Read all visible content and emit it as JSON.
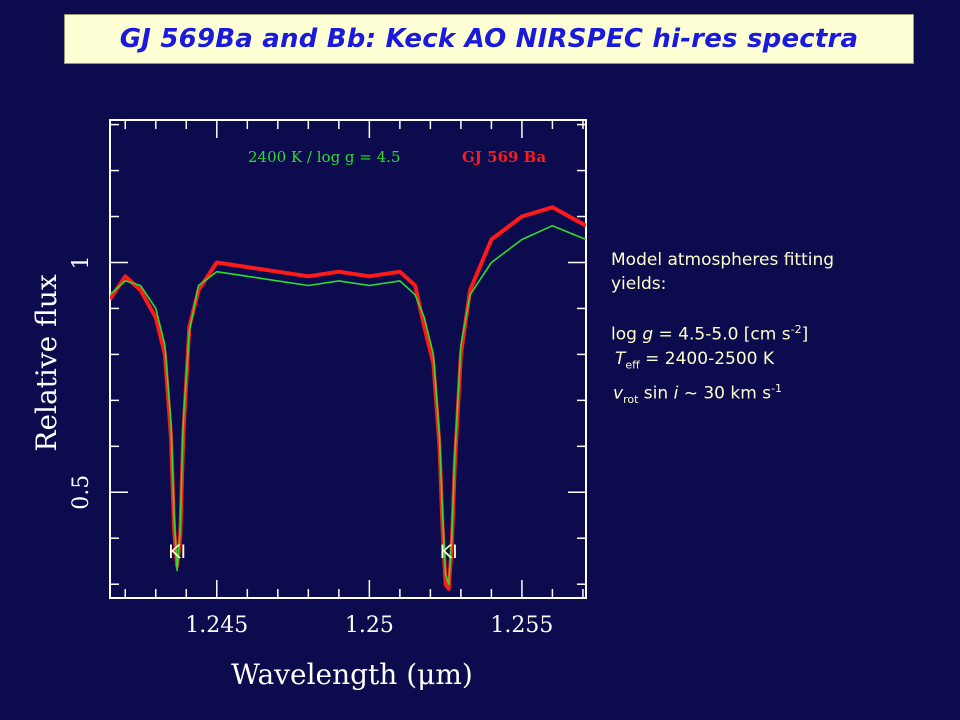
{
  "page_title": "GJ 569Ba and Bb: Keck AO NIRSPEC hi-res spectra",
  "notes": {
    "line1": "Model atmospheres fitting",
    "line2": "yields:",
    "logg_prefix": "log ",
    "logg_var": "g",
    "logg_value": " = 4.5-5.0 [cm s",
    "logg_exp": "-2",
    "logg_close": "]",
    "teff_var": "T",
    "teff_sub": "eff",
    "teff_value": " = 2400-2500 K",
    "vrot_var": "v",
    "vrot_sub": "rot",
    "vrot_mid": " sin ",
    "vrot_i": "i",
    "vrot_value": " ~ 30 km s",
    "vrot_exp": "-1"
  },
  "colors": {
    "background": "#0b0b4e",
    "observed": "#ff1a1a",
    "model": "#2edc2e",
    "axis": "#ffffff",
    "text": "#ffffcf",
    "title_text": "#1a1adc"
  },
  "chart_data": {
    "type": "line",
    "title": "",
    "xlabel": "Wavelength (μm)",
    "ylabel": "Relative flux",
    "xlim": [
      1.2415,
      1.2571
    ],
    "ylim": [
      0.27,
      1.31
    ],
    "x_ticks": [
      1.245,
      1.25,
      1.255
    ],
    "x_tick_labels": [
      "1.245",
      "1.25",
      "1.255"
    ],
    "y_ticks": [
      0.5,
      1.0
    ],
    "y_tick_labels": [
      "0.5",
      "1"
    ],
    "annotations": [
      {
        "text": "KI",
        "x": 1.2437
      },
      {
        "text": "KI",
        "x": 1.2526
      }
    ],
    "series": [
      {
        "name": "2400 K / log g = 4.5",
        "color": "#2edc2e",
        "x": [
          1.2415,
          1.242,
          1.2425,
          1.243,
          1.2433,
          1.2435,
          1.2436,
          1.2437,
          1.2438,
          1.2439,
          1.2441,
          1.2444,
          1.245,
          1.246,
          1.247,
          1.248,
          1.249,
          1.25,
          1.251,
          1.2515,
          1.2518,
          1.2521,
          1.2523,
          1.2524,
          1.2525,
          1.2526,
          1.2527,
          1.2528,
          1.253,
          1.2533,
          1.254,
          1.255,
          1.256,
          1.2571
        ],
        "values": [
          0.93,
          0.96,
          0.95,
          0.9,
          0.82,
          0.65,
          0.45,
          0.33,
          0.42,
          0.65,
          0.85,
          0.95,
          0.98,
          0.97,
          0.96,
          0.95,
          0.96,
          0.95,
          0.96,
          0.93,
          0.88,
          0.8,
          0.62,
          0.45,
          0.32,
          0.3,
          0.4,
          0.58,
          0.82,
          0.93,
          1.0,
          1.05,
          1.08,
          1.05
        ]
      },
      {
        "name": "GJ 569 Ba",
        "color": "#ff1a1a",
        "x": [
          1.2415,
          1.242,
          1.2425,
          1.243,
          1.2433,
          1.2435,
          1.2436,
          1.2437,
          1.2438,
          1.2439,
          1.2441,
          1.2444,
          1.245,
          1.246,
          1.247,
          1.248,
          1.249,
          1.25,
          1.251,
          1.2515,
          1.2518,
          1.2521,
          1.2523,
          1.2524,
          1.2525,
          1.2526,
          1.2527,
          1.2528,
          1.253,
          1.2533,
          1.254,
          1.255,
          1.256,
          1.2571
        ],
        "values": [
          0.92,
          0.97,
          0.94,
          0.88,
          0.8,
          0.62,
          0.42,
          0.34,
          0.4,
          0.62,
          0.86,
          0.94,
          1.0,
          0.99,
          0.98,
          0.97,
          0.98,
          0.97,
          0.98,
          0.95,
          0.86,
          0.78,
          0.6,
          0.42,
          0.3,
          0.29,
          0.38,
          0.56,
          0.8,
          0.94,
          1.05,
          1.1,
          1.12,
          1.08
        ]
      }
    ]
  }
}
